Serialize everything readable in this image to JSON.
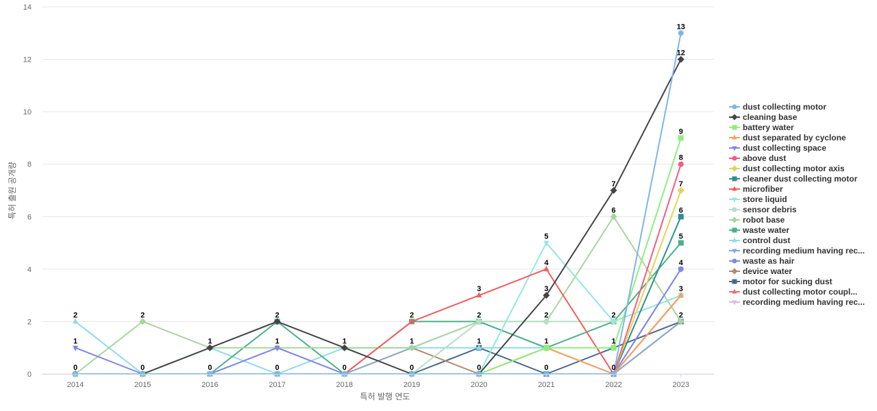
{
  "chart_data": {
    "type": "line",
    "title": "",
    "xlabel": "특허 발행 연도",
    "ylabel": "특허 출원 공개량",
    "ylim": [
      0,
      14
    ],
    "yticks": [
      0,
      2,
      4,
      6,
      8,
      10,
      12,
      14
    ],
    "grid": true,
    "legend_position": "right",
    "x": [
      "2014",
      "2015",
      "2016",
      "2017",
      "2018",
      "2019",
      "2020",
      "2021",
      "2022",
      "2023"
    ],
    "series": [
      {
        "name": "dust collecting motor",
        "color": "#7cb5ec",
        "marker": "circle",
        "values": [
          0,
          0,
          0,
          0,
          0,
          0,
          0,
          0,
          0,
          13
        ]
      },
      {
        "name": "cleaning base",
        "color": "#434348",
        "marker": "diamond",
        "values": [
          0,
          0,
          1,
          2,
          1,
          0,
          0,
          3,
          7,
          12
        ]
      },
      {
        "name": "battery water",
        "color": "#90ed7d",
        "marker": "square",
        "values": [
          0,
          0,
          0,
          0,
          0,
          0,
          0,
          1,
          1,
          9
        ]
      },
      {
        "name": "dust separated by cyclone",
        "color": "#f7a35c",
        "marker": "triangle",
        "values": [
          0,
          0,
          0,
          0,
          0,
          0,
          0,
          1,
          0,
          3
        ]
      },
      {
        "name": "dust collecting space",
        "color": "#8085e9",
        "marker": "triangle-down",
        "values": [
          1,
          0,
          0,
          1,
          0,
          0,
          0,
          0,
          0,
          4
        ]
      },
      {
        "name": "above dust",
        "color": "#f15c80",
        "marker": "circle",
        "values": [
          0,
          0,
          0,
          0,
          0,
          0,
          0,
          0,
          0,
          8
        ]
      },
      {
        "name": "dust collecting motor axis",
        "color": "#e4d354",
        "marker": "diamond",
        "values": [
          0,
          0,
          0,
          0,
          0,
          0,
          0,
          0,
          0,
          7
        ]
      },
      {
        "name": "cleaner dust collecting motor",
        "color": "#2b908f",
        "marker": "square",
        "values": [
          0,
          0,
          0,
          0,
          0,
          0,
          0,
          0,
          0,
          6
        ]
      },
      {
        "name": "microfiber",
        "color": "#f45b5b",
        "marker": "triangle",
        "values": [
          0,
          0,
          0,
          0,
          0,
          2,
          3,
          4,
          0,
          3
        ]
      },
      {
        "name": "store liquid",
        "color": "#91e8e1",
        "marker": "triangle-down",
        "values": [
          0,
          0,
          0,
          0,
          0,
          0,
          0,
          5,
          2,
          3
        ]
      },
      {
        "name": "sensor debris",
        "color": "#b5dfc6",
        "marker": "circle",
        "values": [
          0,
          0,
          0,
          0,
          0,
          0,
          2,
          2,
          2,
          3
        ]
      },
      {
        "name": "robot base",
        "color": "#a8d5a0",
        "marker": "diamond",
        "values": [
          0,
          2,
          1,
          1,
          1,
          1,
          2,
          2,
          6,
          2
        ]
      },
      {
        "name": "waste water",
        "color": "#4caf8a",
        "marker": "square",
        "values": [
          0,
          0,
          0,
          2,
          0,
          2,
          2,
          1,
          2,
          5
        ]
      },
      {
        "name": "control dust",
        "color": "#8fd9ec",
        "marker": "triangle",
        "values": [
          2,
          0,
          1,
          0,
          1,
          1,
          1,
          1,
          0,
          3
        ]
      },
      {
        "name": "recording medium having rec...",
        "color": "#8aa9cf",
        "marker": "triangle-down",
        "values": [
          0,
          0,
          0,
          1,
          0,
          1,
          2,
          1,
          0,
          2
        ]
      },
      {
        "name": "waste as hair",
        "color": "#7b8ce0",
        "marker": "circle",
        "values": [
          0,
          0,
          0,
          0,
          0,
          0,
          0,
          0,
          0,
          4
        ]
      },
      {
        "name": "device water",
        "color": "#b08a6c",
        "marker": "diamond",
        "values": [
          0,
          0,
          0,
          0,
          0,
          1,
          0,
          1,
          0,
          2
        ]
      },
      {
        "name": "motor for sucking dust",
        "color": "#476a8a",
        "marker": "square",
        "values": [
          0,
          0,
          0,
          0,
          0,
          0,
          1,
          0,
          1,
          2
        ]
      },
      {
        "name": "dust collecting motor coupl...",
        "color": "#e86a78",
        "marker": "triangle",
        "values": [
          0,
          0,
          0,
          0,
          0,
          0,
          0,
          0,
          0,
          3
        ]
      },
      {
        "name": "recording medium having rec...",
        "color": "#d9b8e8",
        "marker": "triangle-down",
        "values": [
          0,
          0,
          0,
          0,
          0,
          0,
          0,
          0,
          0,
          2
        ]
      }
    ],
    "data_labels": [
      {
        "x": "2014",
        "value": 2
      },
      {
        "x": "2014",
        "value": 1
      },
      {
        "x": "2014",
        "value": 0
      },
      {
        "x": "2015",
        "value": 2
      },
      {
        "x": "2015",
        "value": 0
      },
      {
        "x": "2016",
        "value": 1
      },
      {
        "x": "2016",
        "value": 0
      },
      {
        "x": "2017",
        "value": 2
      },
      {
        "x": "2017",
        "value": 1
      },
      {
        "x": "2017",
        "value": 0
      },
      {
        "x": "2018",
        "value": 1
      },
      {
        "x": "2018",
        "value": 0
      },
      {
        "x": "2019",
        "value": 2
      },
      {
        "x": "2019",
        "value": 1
      },
      {
        "x": "2019",
        "value": 0
      },
      {
        "x": "2020",
        "value": 3
      },
      {
        "x": "2020",
        "value": 2
      },
      {
        "x": "2020",
        "value": 1
      },
      {
        "x": "2020",
        "value": 0
      },
      {
        "x": "2021",
        "value": 5
      },
      {
        "x": "2021",
        "value": 4
      },
      {
        "x": "2021",
        "value": 3
      },
      {
        "x": "2021",
        "value": 2
      },
      {
        "x": "2021",
        "value": 1
      },
      {
        "x": "2021",
        "value": 0
      },
      {
        "x": "2022",
        "value": 7
      },
      {
        "x": "2022",
        "value": 6
      },
      {
        "x": "2022",
        "value": 2
      },
      {
        "x": "2022",
        "value": 1
      },
      {
        "x": "2022",
        "value": 0
      },
      {
        "x": "2023",
        "value": 13
      },
      {
        "x": "2023",
        "value": 12
      },
      {
        "x": "2023",
        "value": 9
      },
      {
        "x": "2023",
        "value": 8
      },
      {
        "x": "2023",
        "value": 7
      },
      {
        "x": "2023",
        "value": 6
      },
      {
        "x": "2023",
        "value": 5
      },
      {
        "x": "2023",
        "value": 4
      },
      {
        "x": "2023",
        "value": 3
      },
      {
        "x": "2023",
        "value": 2
      }
    ]
  }
}
